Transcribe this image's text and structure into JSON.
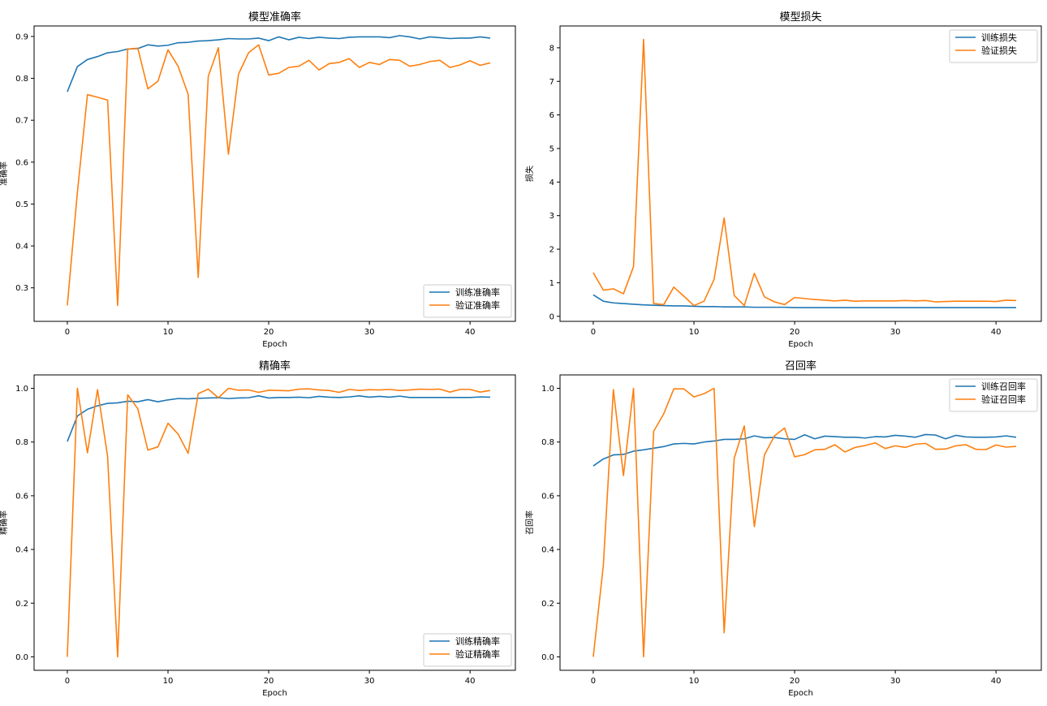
{
  "colors": {
    "train": "#1f77b4",
    "val": "#ff7f0e",
    "frame": "#000000",
    "legend_border": "#cccccc"
  },
  "chart_data": [
    {
      "type": "line",
      "title": "模型准确率",
      "xlabel": "Epoch",
      "ylabel": "准确率",
      "xlim": [
        -3.3,
        44.5
      ],
      "ylim": [
        0.22,
        0.925
      ],
      "xticks": [
        0,
        10,
        20,
        30,
        40
      ],
      "yticks": [
        0.3,
        0.4,
        0.5,
        0.6,
        0.7,
        0.8,
        0.9
      ],
      "ytick_decimals": 1,
      "grid": false,
      "legend": "lower-right",
      "series": [
        {
          "name": "训练准确率",
          "color": "#1f77b4",
          "values": [
            0.768,
            0.828,
            0.845,
            0.852,
            0.861,
            0.864,
            0.87,
            0.871,
            0.88,
            0.877,
            0.879,
            0.885,
            0.886,
            0.889,
            0.89,
            0.892,
            0.895,
            0.894,
            0.894,
            0.896,
            0.89,
            0.899,
            0.892,
            0.898,
            0.895,
            0.898,
            0.896,
            0.895,
            0.898,
            0.899,
            0.899,
            0.899,
            0.897,
            0.902,
            0.899,
            0.894,
            0.899,
            0.897,
            0.895,
            0.896,
            0.896,
            0.899,
            0.896
          ]
        },
        {
          "name": "验证准确率",
          "color": "#ff7f0e",
          "values": [
            0.258,
            0.528,
            0.761,
            0.755,
            0.748,
            0.258,
            0.87,
            0.872,
            0.775,
            0.793,
            0.868,
            0.829,
            0.762,
            0.325,
            0.805,
            0.873,
            0.619,
            0.81,
            0.861,
            0.88,
            0.808,
            0.812,
            0.826,
            0.829,
            0.843,
            0.82,
            0.835,
            0.838,
            0.847,
            0.826,
            0.838,
            0.833,
            0.845,
            0.843,
            0.829,
            0.833,
            0.84,
            0.843,
            0.826,
            0.832,
            0.842,
            0.831,
            0.837
          ]
        }
      ]
    },
    {
      "type": "line",
      "title": "模型损失",
      "xlabel": "Epoch",
      "ylabel": "损失",
      "xlim": [
        -3.3,
        44.5
      ],
      "ylim": [
        -0.15,
        8.65
      ],
      "xticks": [
        0,
        10,
        20,
        30,
        40
      ],
      "yticks": [
        0,
        1,
        2,
        3,
        4,
        5,
        6,
        7,
        8
      ],
      "ytick_decimals": 0,
      "grid": false,
      "legend": "top-right",
      "series": [
        {
          "name": "训练损失",
          "color": "#1f77b4",
          "values": [
            0.64,
            0.45,
            0.4,
            0.38,
            0.36,
            0.34,
            0.33,
            0.32,
            0.31,
            0.31,
            0.3,
            0.29,
            0.29,
            0.28,
            0.28,
            0.28,
            0.27,
            0.27,
            0.27,
            0.27,
            0.26,
            0.26,
            0.26,
            0.26,
            0.26,
            0.26,
            0.26,
            0.26,
            0.26,
            0.26,
            0.26,
            0.26,
            0.26,
            0.26,
            0.26,
            0.26,
            0.26,
            0.26,
            0.26,
            0.26,
            0.26,
            0.26,
            0.26
          ]
        },
        {
          "name": "验证损失",
          "color": "#ff7f0e",
          "values": [
            1.3,
            0.78,
            0.82,
            0.67,
            1.48,
            8.25,
            0.38,
            0.35,
            0.87,
            0.6,
            0.32,
            0.45,
            1.1,
            2.93,
            0.62,
            0.32,
            1.28,
            0.58,
            0.43,
            0.35,
            0.56,
            0.53,
            0.5,
            0.48,
            0.46,
            0.48,
            0.45,
            0.46,
            0.46,
            0.46,
            0.46,
            0.47,
            0.46,
            0.47,
            0.43,
            0.44,
            0.45,
            0.45,
            0.45,
            0.45,
            0.44,
            0.48,
            0.47
          ]
        }
      ]
    },
    {
      "type": "line",
      "title": "精确率",
      "xlabel": "Epoch",
      "ylabel": "精确率",
      "xlim": [
        -3.3,
        44.5
      ],
      "ylim": [
        -0.05,
        1.05
      ],
      "xticks": [
        0,
        10,
        20,
        30,
        40
      ],
      "yticks": [
        0.0,
        0.2,
        0.4,
        0.6,
        0.8,
        1.0
      ],
      "ytick_decimals": 1,
      "grid": false,
      "legend": "lower-right",
      "series": [
        {
          "name": "训练精确率",
          "color": "#1f77b4",
          "values": [
            0.802,
            0.897,
            0.922,
            0.935,
            0.944,
            0.946,
            0.952,
            0.95,
            0.958,
            0.95,
            0.957,
            0.962,
            0.961,
            0.963,
            0.964,
            0.965,
            0.962,
            0.964,
            0.965,
            0.972,
            0.964,
            0.966,
            0.966,
            0.967,
            0.965,
            0.97,
            0.967,
            0.966,
            0.968,
            0.972,
            0.967,
            0.97,
            0.967,
            0.971,
            0.966,
            0.966,
            0.966,
            0.966,
            0.966,
            0.966,
            0.966,
            0.968,
            0.967
          ]
        },
        {
          "name": "验证精确率",
          "color": "#ff7f0e",
          "values": [
            0.0,
            1.0,
            0.76,
            0.995,
            0.747,
            0.0,
            0.976,
            0.924,
            0.77,
            0.782,
            0.87,
            0.83,
            0.758,
            0.98,
            0.997,
            0.965,
            1.0,
            0.993,
            0.994,
            0.985,
            0.993,
            0.992,
            0.991,
            0.997,
            0.998,
            0.994,
            0.992,
            0.985,
            0.996,
            0.992,
            0.995,
            0.994,
            0.996,
            0.992,
            0.994,
            0.997,
            0.996,
            0.997,
            0.986,
            0.996,
            0.996,
            0.986,
            0.992
          ]
        }
      ]
    },
    {
      "type": "line",
      "title": "召回率",
      "xlabel": "Epoch",
      "ylabel": "召回率",
      "xlim": [
        -3.3,
        44.5
      ],
      "ylim": [
        -0.05,
        1.05
      ],
      "xticks": [
        0,
        10,
        20,
        30,
        40
      ],
      "yticks": [
        0.0,
        0.2,
        0.4,
        0.6,
        0.8,
        1.0
      ],
      "ytick_decimals": 1,
      "grid": false,
      "legend": "top-right",
      "series": [
        {
          "name": "训练召回率",
          "color": "#1f77b4",
          "values": [
            0.711,
            0.737,
            0.752,
            0.754,
            0.766,
            0.771,
            0.777,
            0.783,
            0.793,
            0.795,
            0.793,
            0.8,
            0.804,
            0.81,
            0.81,
            0.812,
            0.823,
            0.816,
            0.817,
            0.812,
            0.81,
            0.827,
            0.812,
            0.822,
            0.82,
            0.818,
            0.818,
            0.815,
            0.82,
            0.819,
            0.825,
            0.822,
            0.818,
            0.828,
            0.826,
            0.812,
            0.825,
            0.819,
            0.818,
            0.818,
            0.819,
            0.823,
            0.818
          ]
        },
        {
          "name": "验证召回率",
          "color": "#ff7f0e",
          "values": [
            0.0,
            0.34,
            0.995,
            0.675,
            1.0,
            0.0,
            0.84,
            0.905,
            0.998,
            0.998,
            0.968,
            0.98,
            1.0,
            0.09,
            0.74,
            0.86,
            0.485,
            0.752,
            0.823,
            0.852,
            0.745,
            0.753,
            0.771,
            0.773,
            0.79,
            0.763,
            0.78,
            0.787,
            0.797,
            0.776,
            0.786,
            0.78,
            0.792,
            0.795,
            0.773,
            0.774,
            0.786,
            0.79,
            0.773,
            0.772,
            0.789,
            0.781,
            0.784
          ]
        }
      ]
    }
  ]
}
